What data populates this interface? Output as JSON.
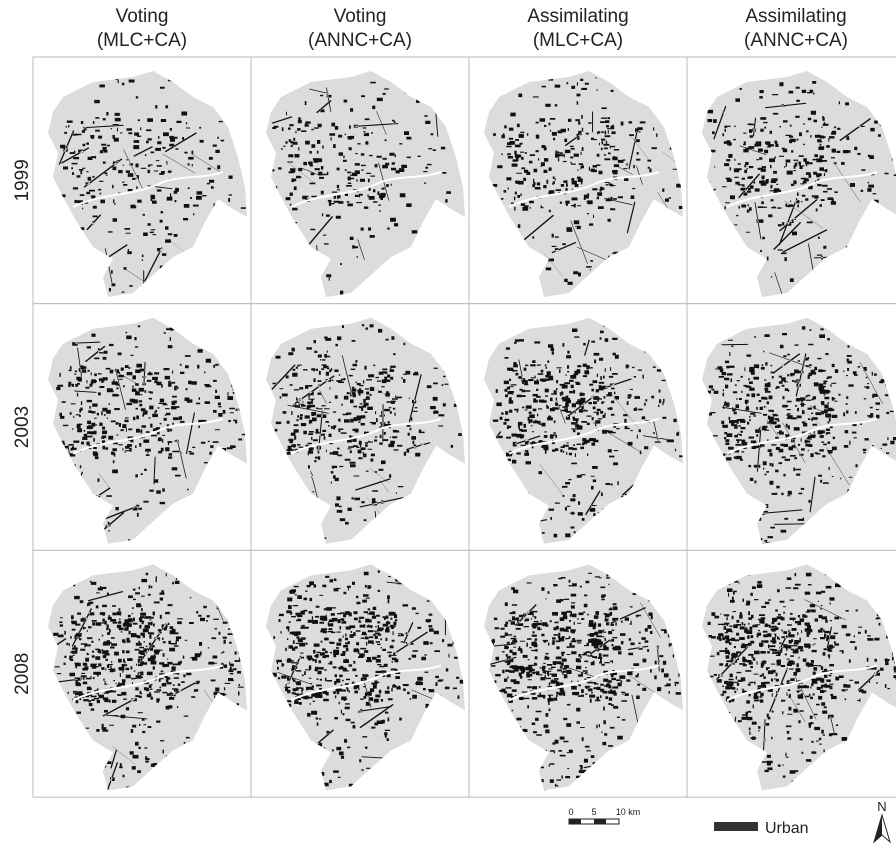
{
  "columns": [
    [
      "Voting",
      "(MLC+CA)"
    ],
    [
      "Voting",
      "(ANNC+CA)"
    ],
    [
      "Assimilating",
      "(MLC+CA)"
    ],
    [
      "Assimilating",
      "(ANNC+CA)"
    ]
  ],
  "rows": [
    "1999",
    "2003",
    "2008"
  ],
  "scale_bar": [
    "0",
    "5",
    "10 km"
  ],
  "legend": "Urban",
  "north": "N"
}
